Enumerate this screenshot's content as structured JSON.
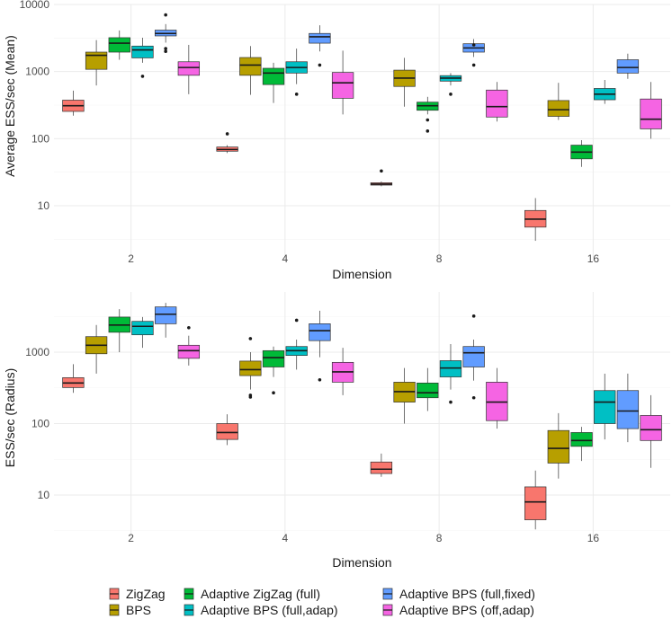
{
  "chart_data": [
    {
      "type": "boxplot",
      "panel": "top",
      "xlabel": "Dimension",
      "ylabel": "Average ESS/sec (Mean)",
      "yscale": "log10",
      "ylim": [
        2.5,
        10000
      ],
      "yticks": [
        10,
        100,
        1000,
        10000
      ],
      "categories": [
        "2",
        "4",
        "8",
        "16"
      ],
      "series": [
        {
          "name": "ZigZag",
          "color": "#F8766D",
          "boxes": [
            {
              "lower": 220,
              "q1": 255,
              "median": 310,
              "q3": 375,
              "upper": 520,
              "outliers": []
            },
            {
              "lower": 61,
              "q1": 65,
              "median": 69,
              "q3": 75,
              "upper": 80,
              "outliers": [
                118
              ]
            },
            {
              "lower": 19.5,
              "q1": 20.3,
              "median": 21,
              "q3": 22,
              "upper": 23,
              "outliers": [
                33
              ]
            },
            {
              "lower": 3,
              "q1": 4.8,
              "median": 6.3,
              "q3": 8.5,
              "upper": 13,
              "outliers": []
            }
          ]
        },
        {
          "name": "BPS",
          "color": "#B79F00",
          "boxes": [
            {
              "lower": 620,
              "q1": 1080,
              "median": 1750,
              "q3": 1950,
              "upper": 2950,
              "outliers": []
            },
            {
              "lower": 450,
              "q1": 880,
              "median": 1250,
              "q3": 1620,
              "upper": 2400,
              "outliers": []
            },
            {
              "lower": 300,
              "q1": 600,
              "median": 800,
              "q3": 1050,
              "upper": 1600,
              "outliers": []
            },
            {
              "lower": 190,
              "q1": 215,
              "median": 270,
              "q3": 370,
              "upper": 680,
              "outliers": []
            }
          ]
        },
        {
          "name": "Adaptive ZigZag (full)",
          "color": "#00BA38",
          "boxes": [
            {
              "lower": 1500,
              "q1": 1950,
              "median": 2650,
              "q3": 3200,
              "upper": 4100,
              "outliers": []
            },
            {
              "lower": 340,
              "q1": 640,
              "median": 950,
              "q3": 1120,
              "upper": 1350,
              "outliers": []
            },
            {
              "lower": 230,
              "q1": 265,
              "median": 310,
              "q3": 350,
              "upper": 420,
              "outliers": [
                190,
                130
              ]
            },
            {
              "lower": 38,
              "q1": 50,
              "median": 63,
              "q3": 80,
              "upper": 95,
              "outliers": []
            }
          ]
        },
        {
          "name": "Adaptive BPS (full,adap)",
          "color": "#00BFC4",
          "boxes": [
            {
              "lower": 1350,
              "q1": 1600,
              "median": 2100,
              "q3": 2400,
              "upper": 3200,
              "outliers": [
                850
              ]
            },
            {
              "lower": 650,
              "q1": 950,
              "median": 1150,
              "q3": 1400,
              "upper": 2200,
              "outliers": [
                460
              ]
            },
            {
              "lower": 620,
              "q1": 720,
              "median": 800,
              "q3": 870,
              "upper": 950,
              "outliers": [
                460
              ]
            },
            {
              "lower": 330,
              "q1": 380,
              "median": 460,
              "q3": 560,
              "upper": 750,
              "outliers": []
            }
          ]
        },
        {
          "name": "Adaptive BPS (full,fixed)",
          "color": "#619CFF",
          "boxes": [
            {
              "lower": 2700,
              "q1": 3400,
              "median": 3700,
              "q3": 4150,
              "upper": 5100,
              "outliers": [
                2200,
                2000,
                7000
              ]
            },
            {
              "lower": 2000,
              "q1": 2650,
              "median": 3300,
              "q3": 3700,
              "upper": 4900,
              "outliers": [
                1250
              ]
            },
            {
              "lower": 1650,
              "q1": 1950,
              "median": 2250,
              "q3": 2600,
              "upper": 3050,
              "outliers": [
                2500,
                1250
              ]
            },
            {
              "lower": 780,
              "q1": 950,
              "median": 1150,
              "q3": 1500,
              "upper": 1850,
              "outliers": []
            }
          ]
        },
        {
          "name": "Adaptive BPS (off,adap)",
          "color": "#F564E3",
          "boxes": [
            {
              "lower": 460,
              "q1": 880,
              "median": 1150,
              "q3": 1400,
              "upper": 2500,
              "outliers": []
            },
            {
              "lower": 230,
              "q1": 400,
              "median": 680,
              "q3": 970,
              "upper": 2050,
              "outliers": []
            },
            {
              "lower": 180,
              "q1": 210,
              "median": 300,
              "q3": 530,
              "upper": 700,
              "outliers": []
            },
            {
              "lower": 100,
              "q1": 140,
              "median": 195,
              "q3": 390,
              "upper": 700,
              "outliers": []
            }
          ]
        }
      ]
    },
    {
      "type": "boxplot",
      "panel": "bottom",
      "xlabel": "Dimension",
      "ylabel": "ESS/sec (Radius)",
      "yscale": "log10",
      "ylim": [
        3,
        5000
      ],
      "yticks": [
        10,
        100,
        1000
      ],
      "categories": [
        "2",
        "4",
        "8",
        "16"
      ],
      "series": [
        {
          "name": "ZigZag",
          "color": "#F8766D",
          "boxes": [
            {
              "lower": 270,
              "q1": 320,
              "median": 370,
              "q3": 440,
              "upper": 680,
              "outliers": []
            },
            {
              "lower": 50,
              "q1": 60,
              "median": 75,
              "q3": 100,
              "upper": 135,
              "outliers": []
            },
            {
              "lower": 18,
              "q1": 20,
              "median": 23,
              "q3": 29,
              "upper": 38,
              "outliers": []
            },
            {
              "lower": 3.3,
              "q1": 4.5,
              "median": 8,
              "q3": 13,
              "upper": 22,
              "outliers": []
            }
          ]
        },
        {
          "name": "BPS",
          "color": "#B79F00",
          "boxes": [
            {
              "lower": 500,
              "q1": 950,
              "median": 1250,
              "q3": 1650,
              "upper": 2400,
              "outliers": []
            },
            {
              "lower": 300,
              "q1": 470,
              "median": 570,
              "q3": 750,
              "upper": 1000,
              "outliers": [
                1550,
                250,
                235
              ]
            },
            {
              "lower": 100,
              "q1": 200,
              "median": 280,
              "q3": 380,
              "upper": 600,
              "outliers": []
            },
            {
              "lower": 17,
              "q1": 28,
              "median": 45,
              "q3": 80,
              "upper": 140,
              "outliers": []
            }
          ]
        },
        {
          "name": "Adaptive ZigZag (full)",
          "color": "#00BA38",
          "boxes": [
            {
              "lower": 1000,
              "q1": 1900,
              "median": 2400,
              "q3": 3100,
              "upper": 4000,
              "outliers": []
            },
            {
              "lower": 450,
              "q1": 620,
              "median": 840,
              "q3": 1050,
              "upper": 1200,
              "outliers": [
                270
              ]
            },
            {
              "lower": 150,
              "q1": 230,
              "median": 270,
              "q3": 370,
              "upper": 600,
              "outliers": []
            },
            {
              "lower": 30,
              "q1": 48,
              "median": 58,
              "q3": 75,
              "upper": 90,
              "outliers": []
            }
          ]
        },
        {
          "name": "Adaptive BPS (full,adap)",
          "color": "#00BFC4",
          "boxes": [
            {
              "lower": 1150,
              "q1": 1750,
              "median": 2300,
              "q3": 2700,
              "upper": 3100,
              "outliers": []
            },
            {
              "lower": 570,
              "q1": 900,
              "median": 1050,
              "q3": 1200,
              "upper": 1500,
              "outliers": [
                2800
              ]
            },
            {
              "lower": 300,
              "q1": 450,
              "median": 600,
              "q3": 760,
              "upper": 1300,
              "outliers": [
                200
              ]
            },
            {
              "lower": 60,
              "q1": 100,
              "median": 200,
              "q3": 290,
              "upper": 500,
              "outliers": []
            }
          ]
        },
        {
          "name": "Adaptive BPS (full,fixed)",
          "color": "#619CFF",
          "boxes": [
            {
              "lower": 1600,
              "q1": 2500,
              "median": 3400,
              "q3": 4300,
              "upper": 4900,
              "outliers": []
            },
            {
              "lower": 850,
              "q1": 1450,
              "median": 2000,
              "q3": 2500,
              "upper": 3800,
              "outliers": [
                410
              ]
            },
            {
              "lower": 400,
              "q1": 620,
              "median": 980,
              "q3": 1200,
              "upper": 1500,
              "outliers": [
                3200,
                230
              ]
            },
            {
              "lower": 55,
              "q1": 85,
              "median": 150,
              "q3": 290,
              "upper": 500,
              "outliers": []
            }
          ]
        },
        {
          "name": "Adaptive BPS (off,adap)",
          "color": "#F564E3",
          "boxes": [
            {
              "lower": 650,
              "q1": 820,
              "median": 1050,
              "q3": 1250,
              "upper": 1700,
              "outliers": [
                2200
              ]
            },
            {
              "lower": 250,
              "q1": 380,
              "median": 530,
              "q3": 720,
              "upper": 1150,
              "outliers": []
            },
            {
              "lower": 85,
              "q1": 110,
              "median": 200,
              "q3": 380,
              "upper": 600,
              "outliers": []
            },
            {
              "lower": 24,
              "q1": 58,
              "median": 82,
              "q3": 130,
              "upper": 250,
              "outliers": []
            }
          ]
        }
      ]
    }
  ],
  "legend": {
    "position": "bottom",
    "items": [
      {
        "label": "ZigZag",
        "color": "#F8766D"
      },
      {
        "label": "BPS",
        "color": "#B79F00"
      },
      {
        "label": "Adaptive ZigZag (full)",
        "color": "#00BA38"
      },
      {
        "label": "Adaptive BPS (full,adap)",
        "color": "#00BFC4"
      },
      {
        "label": "Adaptive BPS (full,fixed)",
        "color": "#619CFF"
      },
      {
        "label": "Adaptive BPS (off,adap)",
        "color": "#F564E3"
      }
    ]
  }
}
